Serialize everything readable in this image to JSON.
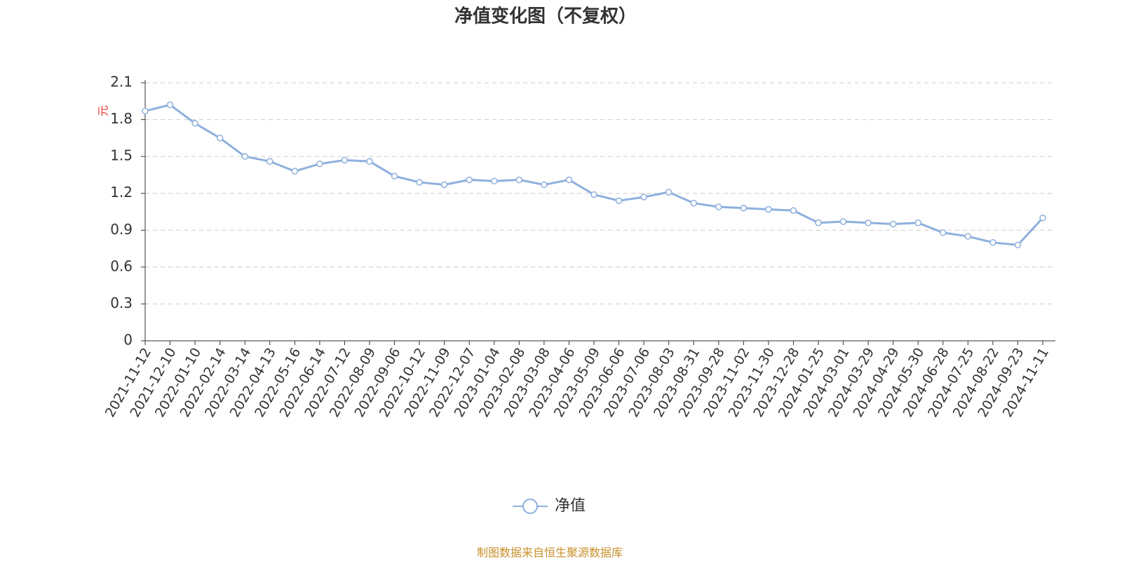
{
  "chart_data": {
    "type": "line",
    "title": "净值变化图（不复权）",
    "y_label": "元",
    "x": [
      "2021-11-12",
      "2021-12-10",
      "2022-01-10",
      "2022-02-14",
      "2022-03-14",
      "2022-04-13",
      "2022-05-16",
      "2022-06-14",
      "2022-07-12",
      "2022-08-09",
      "2022-09-06",
      "2022-10-12",
      "2022-11-09",
      "2022-12-07",
      "2023-01-04",
      "2023-02-08",
      "2023-03-08",
      "2023-04-06",
      "2023-05-09",
      "2023-06-06",
      "2023-07-06",
      "2023-08-03",
      "2023-08-31",
      "2023-09-28",
      "2023-11-02",
      "2023-11-30",
      "2023-12-28",
      "2024-01-25",
      "2024-03-01",
      "2024-03-29",
      "2024-04-29",
      "2024-05-30",
      "2024-06-28",
      "2024-07-25",
      "2024-08-22",
      "2024-09-23",
      "2024-11-11"
    ],
    "series": [
      {
        "name": "净值",
        "color": "#8eb0dd",
        "values": [
          1.87,
          1.92,
          1.77,
          1.65,
          1.5,
          1.46,
          1.38,
          1.44,
          1.47,
          1.46,
          1.34,
          1.29,
          1.27,
          1.31,
          1.3,
          1.31,
          1.27,
          1.31,
          1.19,
          1.14,
          1.17,
          1.21,
          1.12,
          1.09,
          1.08,
          1.07,
          1.06,
          0.96,
          0.97,
          0.96,
          0.95,
          0.96,
          0.88,
          0.85,
          0.8,
          0.78,
          1.0
        ]
      }
    ],
    "ylim": [
      0,
      2.1
    ],
    "yticks": [
      0,
      0.3,
      0.6,
      0.9,
      1.2,
      1.5,
      1.8,
      2.1
    ],
    "grid": true,
    "legend": "bottom",
    "source": "制图数据来自恒生聚源数据库"
  }
}
